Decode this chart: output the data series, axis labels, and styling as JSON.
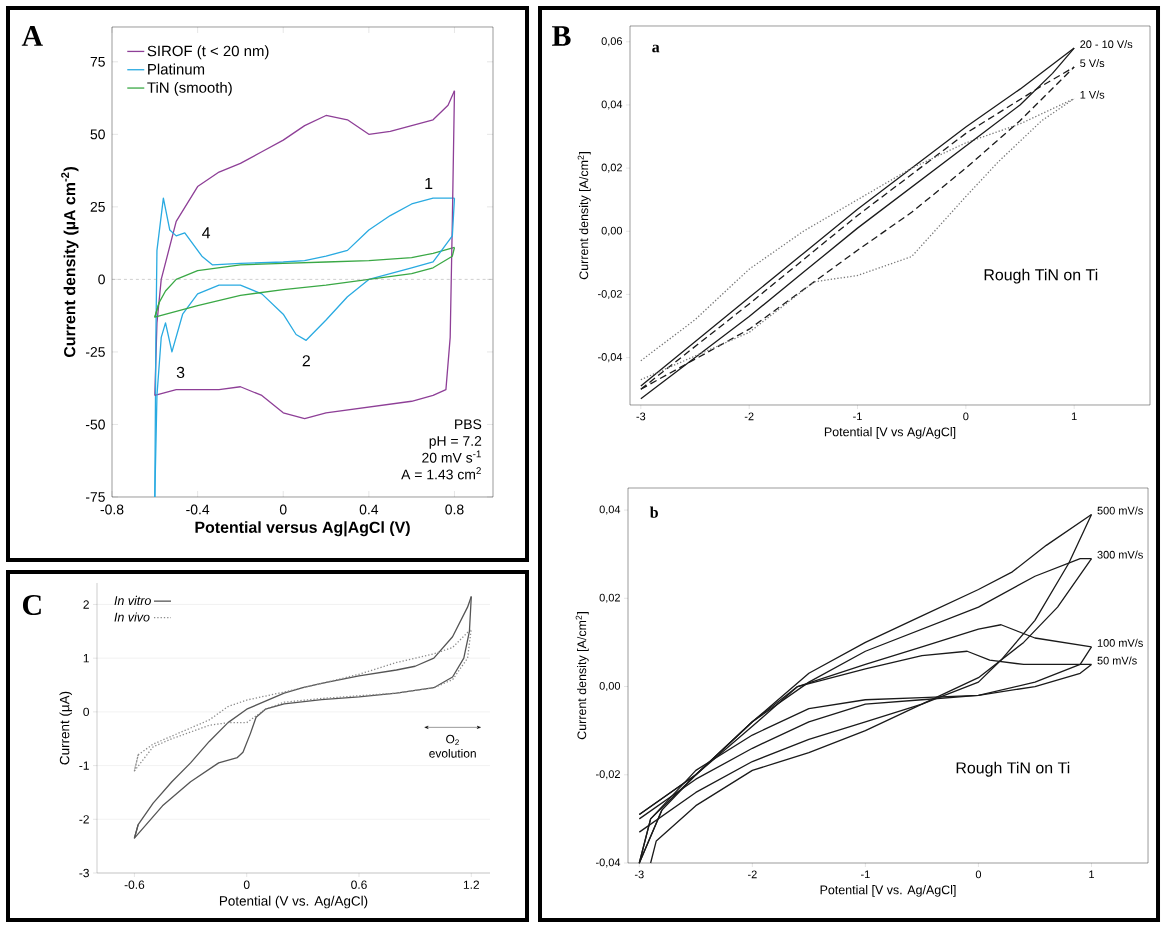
{
  "chart_data": [
    {
      "type": "line",
      "title": "A",
      "xlabel": "Potential versus Ag|AgCl (V)",
      "ylabel": "Current density (µA cm$^{-2}$)",
      "xlim": [
        -0.8,
        0.98
      ],
      "ylim": [
        -75,
        87
      ],
      "xticks": [
        -0.8,
        -0.4,
        0,
        0.4,
        0.8
      ],
      "yticks": [
        -75,
        -50,
        -25,
        0,
        25,
        50,
        75
      ],
      "legend": "top left",
      "ref_lines": [
        {
          "axis": "y",
          "value": 0,
          "color": "#888888",
          "line_style": "dashed"
        }
      ],
      "annotations": [
        "1",
        "2",
        "3",
        "4",
        "PBS",
        "pH = 7.2",
        "20 mV s$^{-1}$",
        "A = 1.43 cm$^{2}$"
      ],
      "series": [
        {
          "name": "SIROF (t < 20 nm)",
          "color": "#8e3f97",
          "x": [
            -0.6,
            -0.59,
            -0.57,
            -0.5,
            -0.4,
            -0.3,
            -0.2,
            -0.1,
            0,
            0.1,
            0.2,
            0.3,
            0.4,
            0.5,
            0.6,
            0.7,
            0.77,
            0.8
          ],
          "values": [
            -40,
            -15,
            0,
            20,
            32,
            37,
            40,
            44,
            48,
            53,
            56.5,
            55,
            50,
            51,
            53,
            55,
            60,
            65
          ]
        },
        {
          "name": "Platinum",
          "color": "#29aae1",
          "x": [
            -0.6,
            -0.595,
            -0.59,
            -0.56,
            -0.53,
            -0.5,
            -0.46,
            -0.42,
            -0.38,
            -0.33,
            -0.2,
            0,
            0.1,
            0.2,
            0.3,
            0.4,
            0.5,
            0.6,
            0.7,
            0.8
          ],
          "values": [
            -75,
            -20,
            10,
            28,
            17,
            15,
            16,
            12,
            8,
            5,
            5.5,
            6,
            6.5,
            8,
            10,
            17,
            22,
            26,
            28,
            28
          ]
        },
        {
          "name": "TiN (smooth)",
          "color": "#3aa845",
          "x": [
            -0.6,
            -0.58,
            -0.55,
            -0.5,
            -0.4,
            -0.2,
            0,
            0.2,
            0.4,
            0.6,
            0.7,
            0.8
          ],
          "values": [
            -13,
            -8,
            -4,
            0,
            3,
            5,
            5.5,
            6,
            6.5,
            7.5,
            9,
            11
          ]
        },
        {
          "color": "#8e3f97",
          "x": [
            -0.6,
            -0.5,
            -0.4,
            -0.3,
            -0.2,
            -0.1,
            0,
            0.1,
            0.2,
            0.4,
            0.6,
            0.7,
            0.76,
            0.78,
            0.79,
            0.8
          ],
          "values": [
            -40,
            -38,
            -38,
            -38,
            -37,
            -40,
            -46,
            -48,
            -46,
            -44,
            -42,
            -40,
            -38,
            -20,
            20,
            65
          ]
        },
        {
          "color": "#29aae1",
          "x": [
            -0.6,
            -0.59,
            -0.57,
            -0.55,
            -0.52,
            -0.47,
            -0.4,
            -0.3,
            -0.2,
            -0.1,
            0,
            0.06,
            0.107,
            0.2,
            0.3,
            0.4,
            0.5,
            0.6,
            0.7,
            0.79,
            0.8
          ],
          "values": [
            -75,
            -40,
            -20,
            -15,
            -25,
            -12,
            -5,
            -2,
            -2,
            -5,
            -12,
            -19,
            -21,
            -14,
            -6,
            0,
            2,
            4,
            6,
            15,
            28
          ]
        },
        {
          "color": "#3aa845",
          "x": [
            -0.58,
            -0.6,
            -0.4,
            -0.2,
            0,
            0.2,
            0.4,
            0.6,
            0.7,
            0.79,
            0.8
          ],
          "values": [
            -8,
            -13,
            -9,
            -5.5,
            -3.5,
            -2,
            0,
            2,
            4,
            8,
            11
          ]
        }
      ]
    },
    {
      "type": "line",
      "title": "B",
      "subtitle": "a",
      "xlabel": "Potential [V vs Ag/AgCl]",
      "ylabel": "Current density [A/cm$^{2}$]",
      "xlim": [
        -3.1,
        1.7
      ],
      "ylim": [
        -0.055,
        0.065
      ],
      "xticks": [
        -3,
        -2,
        -1,
        0,
        1
      ],
      "yticks": [
        {
          "value": -0.04,
          "label": "-0,04"
        },
        {
          "value": -0.02,
          "label": "-0,02"
        },
        {
          "value": 0,
          "label": "0,00"
        },
        {
          "value": 0.02,
          "label": "0,02"
        },
        {
          "value": 0.04,
          "label": "0,04"
        },
        {
          "value": 0.06,
          "label": "0,06"
        }
      ],
      "annotations": [
        "Rough TiN on Ti"
      ],
      "series": [
        {
          "name": "20 - 10 V/s",
          "color": "#1a1a1a",
          "line_style": "solid",
          "x": [
            -3,
            -2.5,
            -2,
            -1.5,
            -1,
            -0.5,
            0,
            0.5,
            1
          ],
          "values": [
            -0.049,
            -0.035,
            -0.021,
            -0.007,
            0.007,
            0.02,
            0.033,
            0.045,
            0.058
          ]
        },
        {
          "name": "5 V/s",
          "color": "#1a1a1a",
          "line_style": "dashed",
          "x": [
            -3,
            -2,
            -1,
            0,
            0.7,
            1
          ],
          "values": [
            -0.05,
            -0.023,
            0.005,
            0.031,
            0.046,
            0.052
          ]
        },
        {
          "name": "1 V/s",
          "color": "#777777",
          "line_style": "dotted",
          "x": [
            -3,
            -2.5,
            -2,
            -1.5,
            -1,
            -0.5,
            0,
            0.5,
            1
          ],
          "values": [
            -0.041,
            -0.028,
            -0.012,
            0,
            0.01,
            0.02,
            0.028,
            0.034,
            0.042
          ]
        },
        {
          "color": "#1a1a1a",
          "line_style": "solid",
          "x": [
            -3,
            -2.5,
            -2,
            -1.5,
            -1,
            -0.5,
            0,
            0.5,
            0.8,
            1
          ],
          "values": [
            -0.053,
            -0.04,
            -0.027,
            -0.013,
            0.001,
            0.014,
            0.027,
            0.04,
            0.05,
            0.058
          ]
        },
        {
          "color": "#1a1a1a",
          "line_style": "dashed",
          "x": [
            -3,
            -2,
            -1,
            -0.5,
            0,
            0.5,
            1
          ],
          "values": [
            -0.05,
            -0.031,
            -0.006,
            0.006,
            0.02,
            0.035,
            0.052
          ]
        },
        {
          "color": "#777777",
          "line_style": "dotted",
          "x": [
            -3,
            -2,
            -1.4,
            -1,
            -0.5,
            0,
            0.3,
            0.7,
            1
          ],
          "values": [
            -0.047,
            -0.032,
            -0.016,
            -0.014,
            -0.008,
            0.011,
            0.022,
            0.035,
            0.042
          ]
        }
      ]
    },
    {
      "type": "line",
      "subtitle": "b",
      "xlabel": "Potential [V vs. Ag/AgCl]",
      "ylabel": "Current density [A/cm$^{2}$]",
      "xlim": [
        -3.1,
        1.5
      ],
      "ylim": [
        -0.04,
        0.045
      ],
      "xticks": [
        -3,
        -2,
        -1,
        0,
        1
      ],
      "yticks": [
        {
          "value": -0.04,
          "label": "-0,04"
        },
        {
          "value": -0.02,
          "label": "-0,02"
        },
        {
          "value": 0,
          "label": "0,00"
        },
        {
          "value": 0.02,
          "label": "0,02"
        },
        {
          "value": 0.04,
          "label": "0,04"
        }
      ],
      "annotations": [
        "Rough TiN on Ti"
      ],
      "series": [
        {
          "name": "500 mV/s",
          "color": "#1a1a1a",
          "x": [
            -3,
            -2.9,
            -2.5,
            -2,
            -1.5,
            -1,
            -0.5,
            0,
            0.3,
            0.6,
            1
          ],
          "values": [
            -0.04,
            -0.03,
            -0.02,
            -0.008,
            0.003,
            0.01,
            0.016,
            0.022,
            0.026,
            0.032,
            0.039
          ]
        },
        {
          "name": "300 mV/s",
          "color": "#1a1a1a",
          "x": [
            -3,
            -2.5,
            -2,
            -1.5,
            -1,
            -0.5,
            0,
            0.5,
            0.9,
            1
          ],
          "values": [
            -0.029,
            -0.02,
            -0.008,
            0.001,
            0.008,
            0.013,
            0.018,
            0.025,
            0.029,
            0.029
          ]
        },
        {
          "name": "100 mV/s",
          "color": "#1a1a1a",
          "x": [
            -3,
            -2.5,
            -2,
            -1.6,
            -1,
            -0.5,
            0,
            0.2,
            0.5,
            1
          ],
          "values": [
            -0.029,
            -0.02,
            -0.008,
            0,
            0.005,
            0.009,
            0.013,
            0.014,
            0.011,
            0.009
          ]
        },
        {
          "name": "50 mV/s",
          "color": "#1a1a1a",
          "x": [
            -3,
            -2.8,
            -2.5,
            -2,
            -1.6,
            -1,
            -0.5,
            -0.1,
            0.1,
            0.4,
            1
          ],
          "values": [
            -0.04,
            -0.028,
            -0.02,
            -0.009,
            0,
            0.004,
            0.007,
            0.008,
            0.006,
            0.005,
            0.005
          ]
        },
        {
          "color": "#1a1a1a",
          "x": [
            -2.9,
            -2.85,
            -2.5,
            -2,
            -1.5,
            -1,
            -0.5,
            0,
            0.2,
            0.5,
            0.8,
            1
          ],
          "values": [
            -0.04,
            -0.035,
            -0.027,
            -0.019,
            -0.015,
            -0.01,
            -0.004,
            0.001,
            0.006,
            0.015,
            0.028,
            0.039
          ]
        },
        {
          "color": "#1a1a1a",
          "x": [
            -3,
            -2.5,
            -2,
            -1.5,
            -1,
            -0.5,
            0,
            0.4,
            0.7,
            1
          ],
          "values": [
            -0.033,
            -0.024,
            -0.017,
            -0.012,
            -0.008,
            -0.004,
            0.002,
            0.01,
            0.018,
            0.029
          ]
        },
        {
          "color": "#1a1a1a",
          "x": [
            -3,
            -2.5,
            -2,
            -1.5,
            -1,
            -0.5,
            0,
            0.5,
            0.9,
            1
          ],
          "values": [
            -0.03,
            -0.021,
            -0.014,
            -0.008,
            -0.004,
            -0.003,
            -0.002,
            0.001,
            0.005,
            0.009
          ]
        },
        {
          "color": "#1a1a1a",
          "x": [
            -2.8,
            -3,
            -2.9,
            -2.5,
            -2,
            -1.5,
            -1,
            -0.5,
            0,
            0.5,
            0.9,
            1
          ],
          "values": [
            -0.028,
            -0.04,
            -0.03,
            -0.019,
            -0.011,
            -0.005,
            -0.003,
            -0.0025,
            -0.002,
            0,
            0.003,
            0.005
          ]
        }
      ]
    },
    {
      "type": "line",
      "title": "C",
      "xlabel": "Potential (V vs. Ag/AgCl)",
      "ylabel": "Current (µA)",
      "xlim": [
        -0.8,
        1.3
      ],
      "ylim": [
        -3,
        2.4
      ],
      "xticks": [
        -0.6,
        0,
        0.6,
        1.2
      ],
      "yticks": [
        -3,
        -2,
        -1,
        0,
        1,
        2
      ],
      "grid": "y",
      "legend": "top left",
      "annotations": [
        "O$_{2}$ evolution"
      ],
      "series": [
        {
          "name": "In vitro",
          "color": "#555555",
          "line_style": "solid",
          "x": [
            -0.6,
            -0.58,
            -0.5,
            -0.4,
            -0.3,
            -0.2,
            -0.1,
            0,
            0.1,
            0.2,
            0.3,
            0.4,
            0.6,
            0.8,
            0.9,
            1,
            1.1,
            1.18,
            1.2
          ],
          "values": [
            -2.35,
            -2.1,
            -1.7,
            -1.3,
            -0.95,
            -0.55,
            -0.2,
            0.05,
            0.2,
            0.35,
            0.45,
            0.53,
            0.67,
            0.78,
            0.85,
            1,
            1.4,
            1.95,
            2.15
          ]
        },
        {
          "name": "In vivo",
          "color": "#8a8a8a",
          "line_style": "dotted",
          "x": [
            -0.6,
            -0.58,
            -0.5,
            -0.4,
            -0.2,
            -0.1,
            0,
            0.2,
            0.4,
            0.6,
            0.8,
            1,
            1.1,
            1.2
          ],
          "values": [
            -1.1,
            -0.8,
            -0.6,
            -0.45,
            -0.15,
            0.1,
            0.22,
            0.37,
            0.53,
            0.7,
            0.92,
            1.08,
            1.2,
            1.55
          ]
        },
        {
          "color": "#555555",
          "line_style": "solid",
          "x": [
            -0.58,
            -0.6,
            -0.45,
            -0.3,
            -0.15,
            -0.05,
            -0.02,
            0.02,
            0.05,
            0.1,
            0.2,
            0.4,
            0.6,
            0.8,
            1,
            1.1,
            1.16,
            1.19,
            1.2
          ],
          "values": [
            -2.1,
            -2.35,
            -1.75,
            -1.3,
            -0.95,
            -0.85,
            -0.75,
            -0.4,
            -0.1,
            0.05,
            0.15,
            0.23,
            0.28,
            0.35,
            0.45,
            0.65,
            1,
            1.5,
            2.15
          ]
        },
        {
          "color": "#8a8a8a",
          "line_style": "dotted",
          "x": [
            -0.58,
            -0.6,
            -0.5,
            -0.4,
            -0.2,
            -0.1,
            0,
            0.1,
            0.2,
            0.4,
            0.6,
            0.8,
            1,
            1.1,
            1.18,
            1.2
          ],
          "values": [
            -0.8,
            -1.1,
            -0.65,
            -0.5,
            -0.25,
            -0.2,
            -0.2,
            0.05,
            0.18,
            0.25,
            0.3,
            0.35,
            0.45,
            0.6,
            1,
            1.55
          ]
        }
      ]
    }
  ]
}
